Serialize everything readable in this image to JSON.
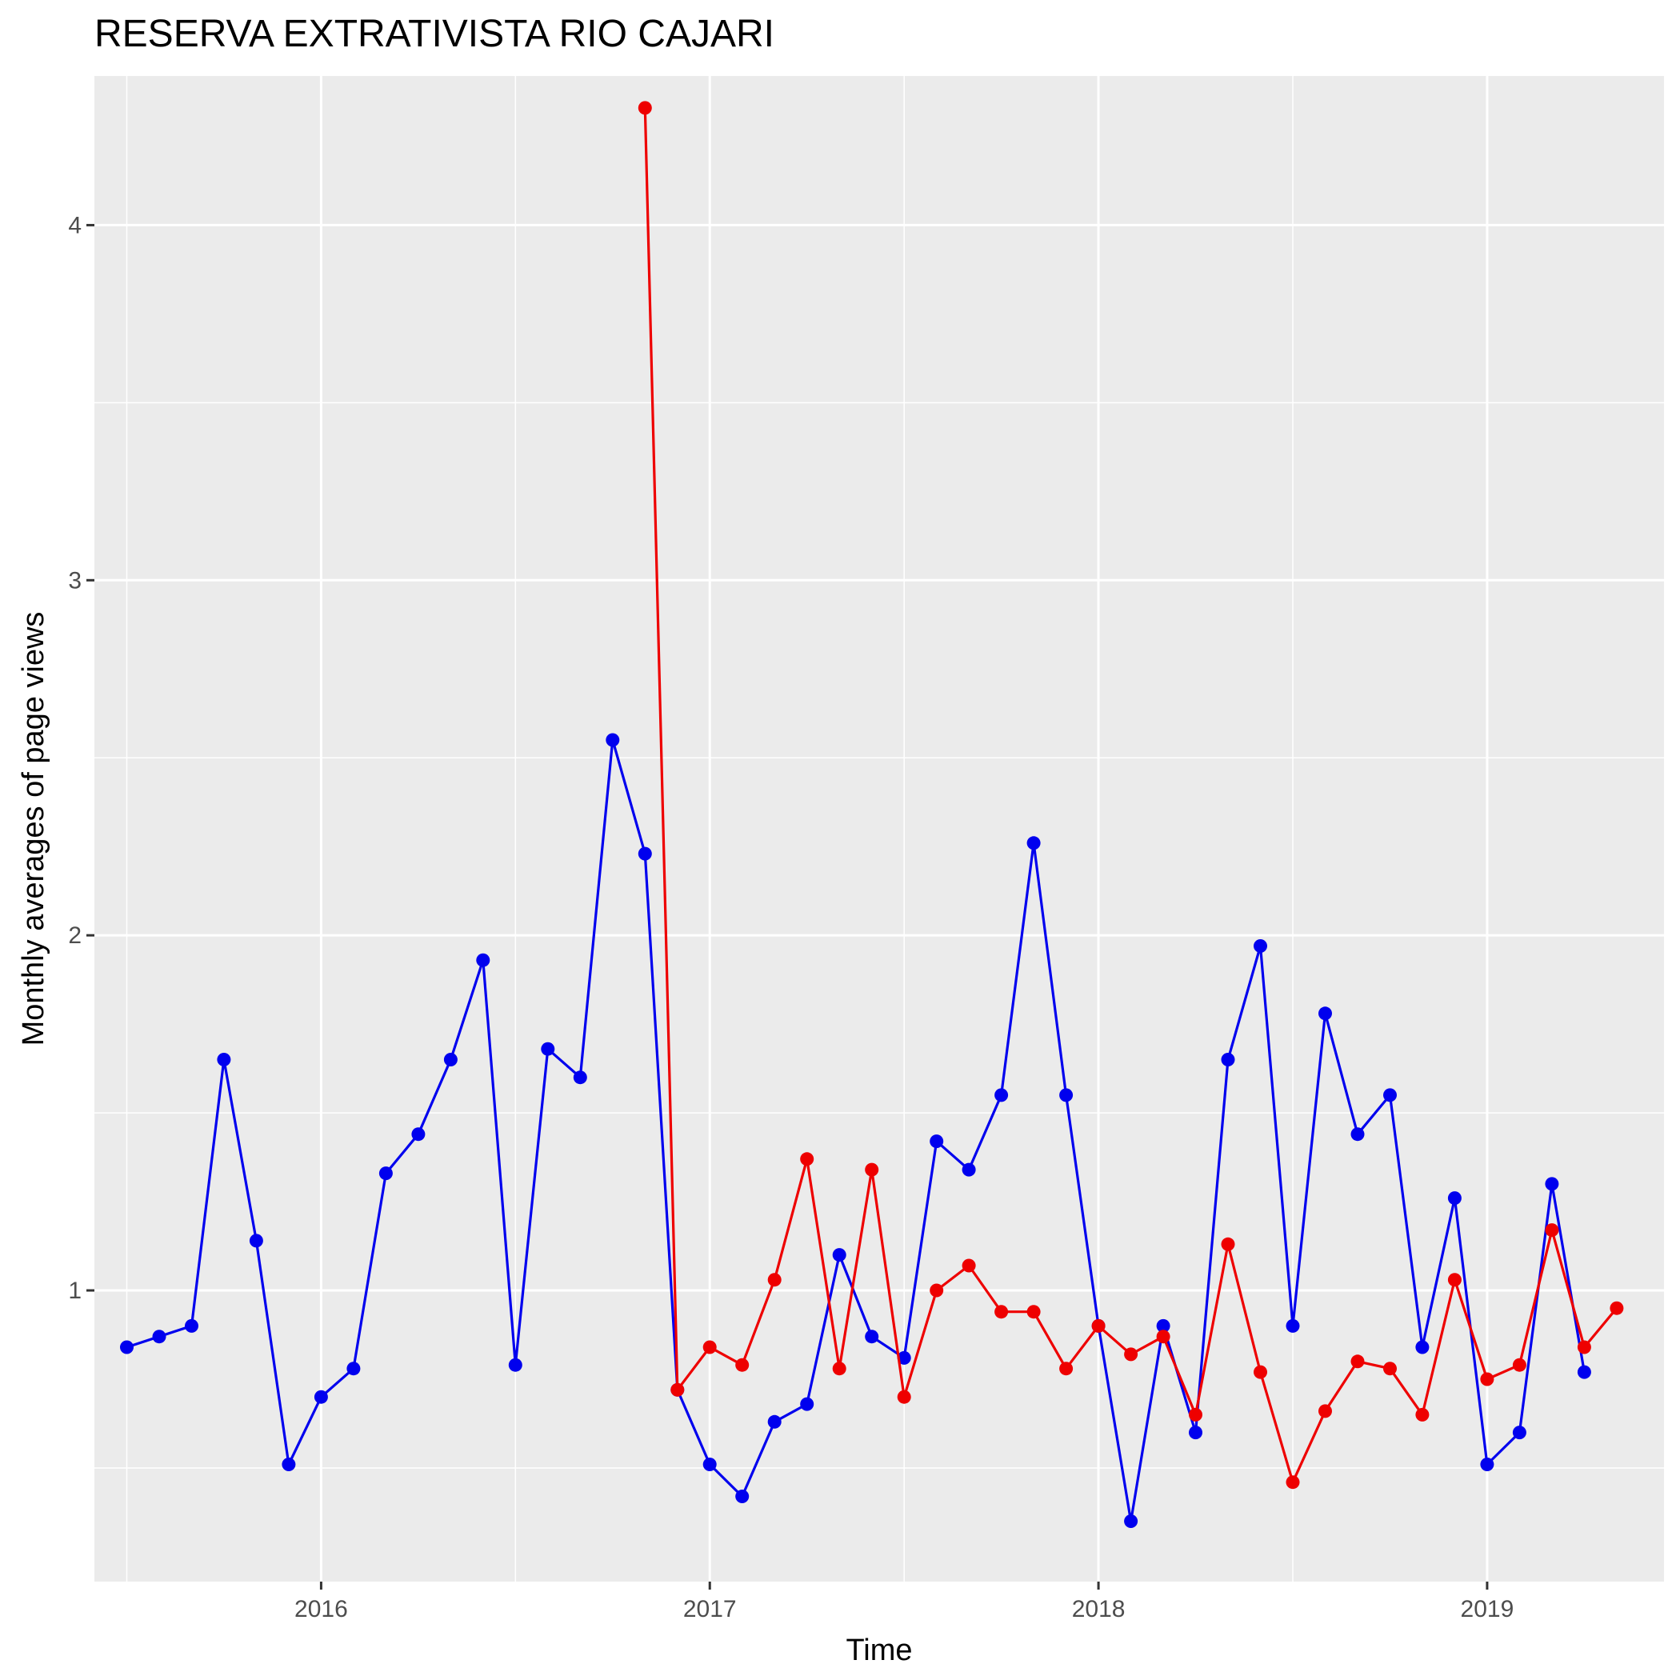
{
  "chart_data": {
    "type": "line",
    "title": "RESERVA EXTRATIVISTA RIO CAJARI",
    "xlabel": "Time",
    "ylabel": "Monthly averages of page views",
    "xlim": [
      "2015-06-01",
      "2019-06-15"
    ],
    "ylim": [
      0.18,
      4.42
    ],
    "x_ticks": [
      "2016",
      "2017",
      "2018",
      "2019"
    ],
    "y_ticks": [
      "1",
      "2",
      "3",
      "4"
    ],
    "grid": true,
    "legend": "none",
    "colors": {
      "panel": "#ebebeb",
      "grid": "#ffffff",
      "blue": "#0000ee",
      "red": "#ee0000"
    },
    "series": [
      {
        "color": "#0000ee",
        "points": [
          [
            "2015-07",
            0.84
          ],
          [
            "2015-08",
            0.87
          ],
          [
            "2015-09",
            0.9
          ],
          [
            "2015-10",
            1.65
          ],
          [
            "2015-11",
            1.14
          ],
          [
            "2015-12",
            0.51
          ],
          [
            "2016-01",
            0.7
          ],
          [
            "2016-02",
            0.78
          ],
          [
            "2016-03",
            1.33
          ],
          [
            "2016-04",
            1.44
          ],
          [
            "2016-05",
            1.65
          ],
          [
            "2016-06",
            1.93
          ],
          [
            "2016-07",
            0.79
          ],
          [
            "2016-08",
            1.68
          ],
          [
            "2016-09",
            1.6
          ],
          [
            "2016-10",
            2.55
          ],
          [
            "2016-11",
            2.23
          ],
          [
            "2016-12",
            0.72
          ],
          [
            "2017-01",
            0.51
          ],
          [
            "2017-02",
            0.42
          ],
          [
            "2017-03",
            0.63
          ],
          [
            "2017-04",
            0.68
          ],
          [
            "2017-05",
            1.1
          ],
          [
            "2017-06",
            0.87
          ],
          [
            "2017-07",
            0.81
          ],
          [
            "2017-08",
            1.42
          ],
          [
            "2017-09",
            1.34
          ],
          [
            "2017-10",
            1.55
          ],
          [
            "2017-11",
            2.26
          ],
          [
            "2017-12",
            1.55
          ],
          [
            "2018-01",
            0.9
          ],
          [
            "2018-02",
            0.35
          ],
          [
            "2018-03",
            0.9
          ],
          [
            "2018-04",
            0.6
          ],
          [
            "2018-05",
            1.65
          ],
          [
            "2018-06",
            1.97
          ],
          [
            "2018-07",
            0.9
          ],
          [
            "2018-08",
            1.78
          ],
          [
            "2018-09",
            1.44
          ],
          [
            "2018-10",
            1.55
          ],
          [
            "2018-11",
            0.84
          ],
          [
            "2018-12",
            1.26
          ],
          [
            "2019-01",
            0.51
          ],
          [
            "2019-02",
            0.6
          ],
          [
            "2019-03",
            1.3
          ],
          [
            "2019-04",
            0.77
          ]
        ]
      },
      {
        "color": "#ee0000",
        "points": [
          [
            "2016-11",
            4.33
          ],
          [
            "2016-12",
            0.72
          ],
          [
            "2017-01",
            0.84
          ],
          [
            "2017-02",
            0.79
          ],
          [
            "2017-03",
            1.03
          ],
          [
            "2017-04",
            1.37
          ],
          [
            "2017-05",
            0.78
          ],
          [
            "2017-06",
            1.34
          ],
          [
            "2017-07",
            0.7
          ],
          [
            "2017-08",
            1.0
          ],
          [
            "2017-09",
            1.07
          ],
          [
            "2017-10",
            0.94
          ],
          [
            "2017-11",
            0.94
          ],
          [
            "2017-12",
            0.78
          ],
          [
            "2018-01",
            0.9
          ],
          [
            "2018-02",
            0.82
          ],
          [
            "2018-03",
            0.87
          ],
          [
            "2018-04",
            0.65
          ],
          [
            "2018-05",
            1.13
          ],
          [
            "2018-06",
            0.77
          ],
          [
            "2018-07",
            0.46
          ],
          [
            "2018-08",
            0.66
          ],
          [
            "2018-09",
            0.8
          ],
          [
            "2018-10",
            0.78
          ],
          [
            "2018-11",
            0.65
          ],
          [
            "2018-12",
            1.03
          ],
          [
            "2019-01",
            0.75
          ],
          [
            "2019-02",
            0.79
          ],
          [
            "2019-03",
            1.17
          ],
          [
            "2019-04",
            0.84
          ],
          [
            "2019-05",
            0.95
          ]
        ]
      }
    ]
  }
}
